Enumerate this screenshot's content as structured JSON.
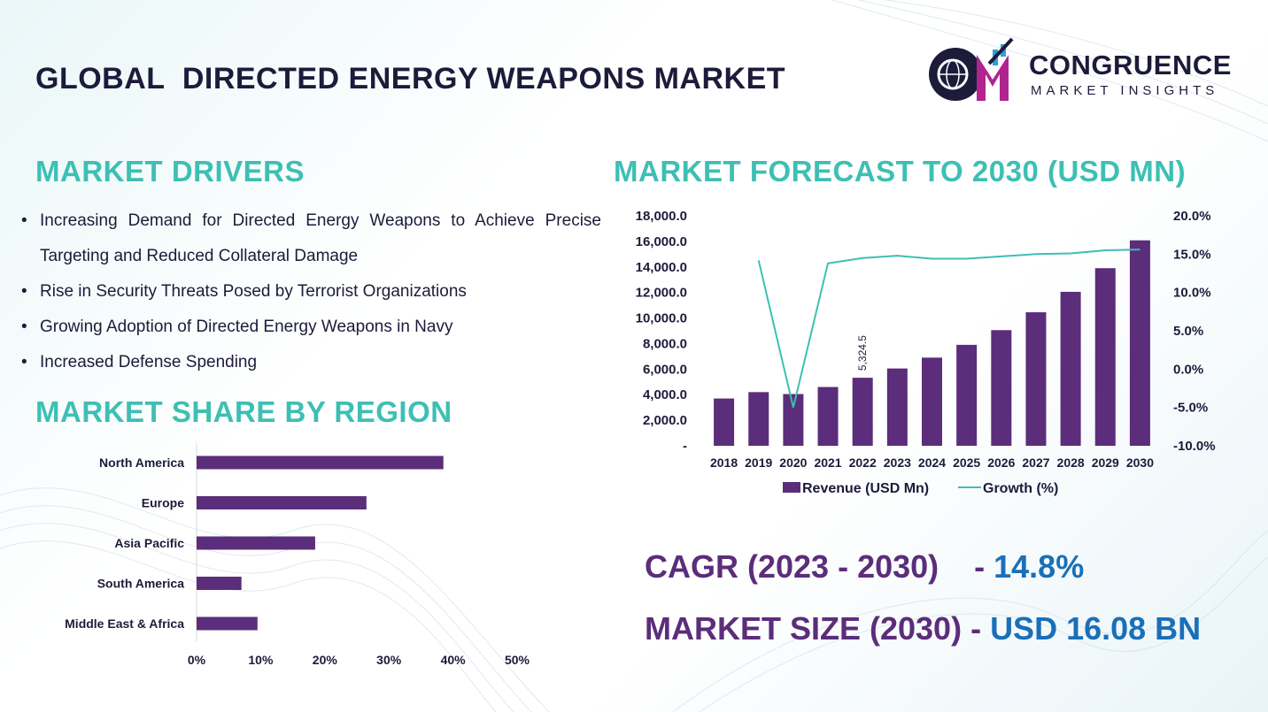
{
  "header": {
    "title": "GLOBAL  DIRECTED ENERGY WEAPONS MARKET",
    "logo_name": "CONGRUENCE",
    "logo_tagline": "MARKET INSIGHTS",
    "logo_monogram": "CM"
  },
  "colors": {
    "accent_teal": "#3dbfb4",
    "bar_purple": "#5b2d7a",
    "value_blue": "#1a6fb8",
    "title_navy": "#1d1b3a"
  },
  "drivers": {
    "heading": "MARKET DRIVERS",
    "items": [
      "Increasing Demand for Directed Energy Weapons to Achieve Precise Targeting and Reduced Collateral Damage",
      "Rise in Security Threats Posed by Terrorist Organizations",
      "Growing Adoption of Directed Energy Weapons in Navy",
      "Increased Defense Spending"
    ]
  },
  "region": {
    "heading": "MARKET SHARE BY REGION"
  },
  "forecast": {
    "heading": "MARKET FORECAST TO 2030 (USD MN)"
  },
  "stats": {
    "cagr_label": "CAGR (2023 - 2030)    - ",
    "cagr_value": "14.8%",
    "size_label": "MARKET SIZE (2030) - ",
    "size_value": "USD 16.08 BN"
  },
  "chart_data": [
    {
      "type": "bar",
      "orientation": "horizontal",
      "title": "MARKET SHARE BY REGION",
      "categories": [
        "North America",
        "Europe",
        "Asia Pacific",
        "South America",
        "Middle East & Africa"
      ],
      "values": [
        38.5,
        26.5,
        18.5,
        7,
        9.5
      ],
      "xlim": [
        0,
        50
      ],
      "xticks": [
        "0%",
        "10%",
        "20%",
        "30%",
        "40%",
        "50%"
      ]
    },
    {
      "type": "bar",
      "title": "MARKET FORECAST TO 2030 (USD MN)",
      "categories": [
        "2018",
        "2019",
        "2020",
        "2021",
        "2022",
        "2023",
        "2024",
        "2025",
        "2026",
        "2027",
        "2028",
        "2029",
        "2030"
      ],
      "series": [
        {
          "name": "Revenue (USD Mn)",
          "type": "bar",
          "axis": "left",
          "values": [
            3700,
            4200,
            4050,
            4600,
            5324.5,
            6050,
            6900,
            7900,
            9050,
            10450,
            12050,
            13900,
            16080
          ]
        },
        {
          "name": "Growth (%)",
          "type": "line",
          "axis": "right",
          "values": [
            null,
            14.2,
            -5.0,
            13.8,
            14.5,
            14.8,
            14.4,
            14.4,
            14.7,
            15.0,
            15.1,
            15.5,
            15.6
          ]
        }
      ],
      "data_label": {
        "index": 4,
        "text": "5,324.5"
      },
      "ylim_left": [
        0,
        18000
      ],
      "yticks_left": [
        "-",
        "2,000.0",
        "4,000.0",
        "6,000.0",
        "8,000.0",
        "10,000.0",
        "12,000.0",
        "14,000.0",
        "16,000.0",
        "18,000.0"
      ],
      "ylim_right": [
        -10,
        20
      ],
      "yticks_right": [
        "-10.0%",
        "-5.0%",
        "0.0%",
        "5.0%",
        "10.0%",
        "15.0%",
        "20.0%"
      ],
      "legend": [
        "Revenue (USD Mn)",
        "Growth (%)"
      ],
      "legend_position": "bottom"
    }
  ]
}
